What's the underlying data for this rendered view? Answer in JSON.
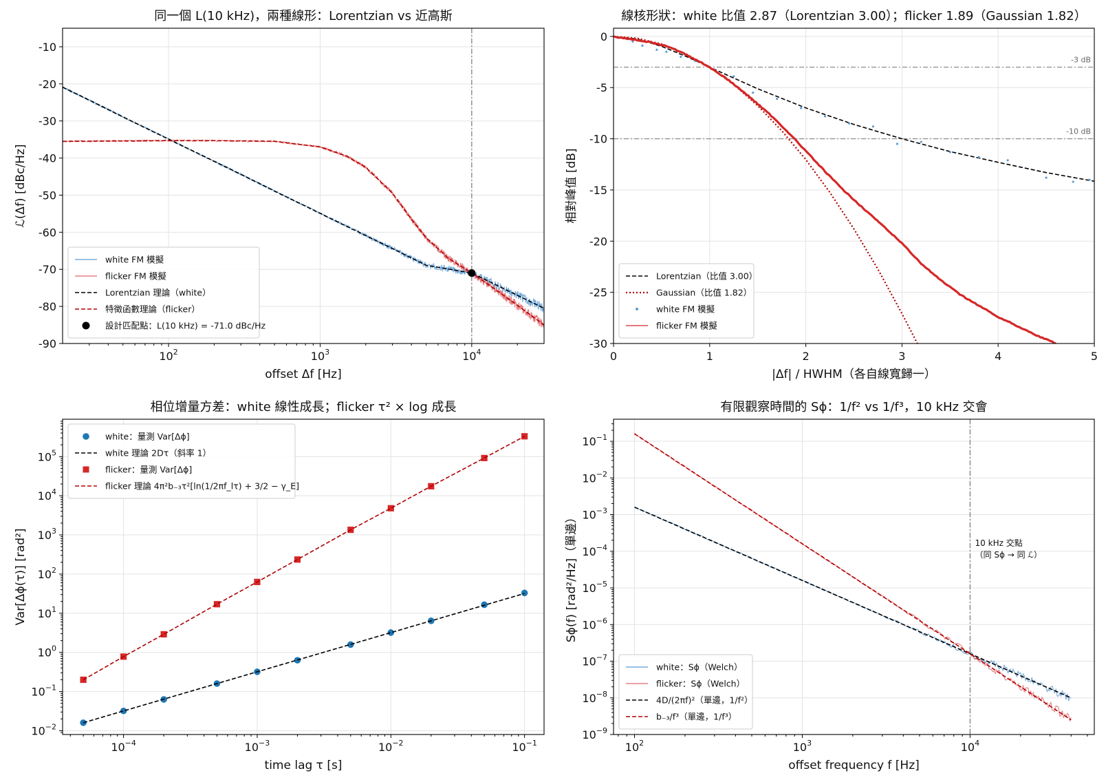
{
  "colors": {
    "white_fm": "#5b9bd5",
    "flicker_fm": "#e0666a",
    "theory_white": "#000000",
    "theory_flicker": "#b00000",
    "measured_white": "#1f77b4",
    "measured_flicker": "#d62728",
    "marker_line": "#777777"
  },
  "chart_data": [
    {
      "type": "line",
      "title": "同一個 L(10 kHz)，兩種線形：Lorentzian vs 近高斯",
      "xlabel": "offset Δf [Hz]",
      "ylabel": "ℒ(Δf) [dBc/Hz]",
      "xscale": "log",
      "xlim": [
        20,
        30000
      ],
      "ylim": [
        -90,
        -5
      ],
      "xticks": [
        {
          "v": 100,
          "m": "10",
          "e": "2"
        },
        {
          "v": 1000,
          "m": "10",
          "e": "3"
        },
        {
          "v": 10000,
          "m": "10",
          "e": "4"
        }
      ],
      "yticks": [
        {
          "v": -10,
          "t": "-10"
        },
        {
          "v": -20,
          "t": "-20"
        },
        {
          "v": -30,
          "t": "-30"
        },
        {
          "v": -40,
          "t": "-40"
        },
        {
          "v": -50,
          "t": "-50"
        },
        {
          "v": -60,
          "t": "-60"
        },
        {
          "v": -70,
          "t": "-70"
        },
        {
          "v": -80,
          "t": "-80"
        },
        {
          "v": -90,
          "t": "-90"
        }
      ],
      "grid": true,
      "legend_position": "lower-left",
      "vline_x": 10000,
      "series": [
        {
          "name": "white FM 模擬",
          "kind": "noisy",
          "color": "white_fm",
          "x": [
            20,
            30,
            50,
            100,
            200,
            300,
            500,
            1000,
            2000,
            3000,
            5000,
            10000,
            20000,
            30000
          ],
          "y": [
            -20.9,
            -24.4,
            -28.9,
            -34.9,
            -40.9,
            -44.4,
            -48.9,
            -54.9,
            -60.9,
            -64.4,
            -68.9,
            -71.0,
            -77.0,
            -80.5
          ]
        },
        {
          "name": "flicker FM 模擬",
          "kind": "noisy",
          "color": "flicker_fm",
          "x": [
            20,
            50,
            100,
            200,
            500,
            1000,
            1500,
            2000,
            3000,
            4000,
            5000,
            7000,
            10000,
            15000,
            20000,
            30000
          ],
          "y": [
            -35.5,
            -35.4,
            -35.3,
            -35.3,
            -35.5,
            -37.0,
            -39.5,
            -42.5,
            -49.5,
            -56.5,
            -61.5,
            -67.0,
            -71.0,
            -76.0,
            -79.7,
            -85.0
          ]
        },
        {
          "name": "Lorentzian 理論（white）",
          "kind": "dashed",
          "color": "theory_white",
          "x": [
            20,
            30,
            50,
            100,
            200,
            300,
            500,
            1000,
            2000,
            3000,
            5000,
            10000,
            20000,
            30000
          ],
          "y": [
            -20.9,
            -24.4,
            -28.9,
            -34.9,
            -40.9,
            -44.4,
            -48.9,
            -54.9,
            -60.9,
            -64.4,
            -68.9,
            -71.0,
            -77.0,
            -80.5
          ]
        },
        {
          "name": "特徵函數理論（flicker）",
          "kind": "dashed",
          "color": "theory_flicker",
          "x": [
            20,
            50,
            100,
            200,
            500,
            1000,
            1500,
            2000,
            3000,
            4000,
            5000,
            7000,
            10000,
            15000,
            20000,
            30000
          ],
          "y": [
            -35.5,
            -35.4,
            -35.3,
            -35.3,
            -35.5,
            -37.0,
            -39.5,
            -42.5,
            -49.5,
            -56.5,
            -61.5,
            -67.0,
            -71.0,
            -76.0,
            -79.7,
            -85.0
          ]
        },
        {
          "name": "設計匹配點：L(10 kHz) = -71.0 dBc/Hz",
          "kind": "point",
          "color": "theory_white",
          "x": [
            10000
          ],
          "y": [
            -71.0
          ]
        }
      ]
    },
    {
      "type": "line",
      "title": "線核形狀：white 比值 2.87（Lorentzian 3.00）；flicker 1.89（Gaussian 1.82）",
      "xlabel": "|Δf| / HWHM（各自線寬歸一）",
      "ylabel": "相對峰值 [dB]",
      "xscale": "linear",
      "xlim": [
        0,
        5
      ],
      "ylim": [
        -30,
        0.8
      ],
      "xticks": [
        {
          "v": 0,
          "t": "0"
        },
        {
          "v": 1,
          "t": "1"
        },
        {
          "v": 2,
          "t": "2"
        },
        {
          "v": 3,
          "t": "3"
        },
        {
          "v": 4,
          "t": "4"
        },
        {
          "v": 5,
          "t": "5"
        }
      ],
      "yticks": [
        {
          "v": 0,
          "t": "0"
        },
        {
          "v": -5,
          "t": "-5"
        },
        {
          "v": -10,
          "t": "-10"
        },
        {
          "v": -15,
          "t": "-15"
        },
        {
          "v": -20,
          "t": "-20"
        },
        {
          "v": -25,
          "t": "-25"
        },
        {
          "v": -30,
          "t": "-30"
        }
      ],
      "grid": true,
      "legend_position": "lower-left",
      "hlines": [
        {
          "y": -3,
          "label": "-3 dB"
        },
        {
          "y": -10,
          "label": "-10 dB"
        }
      ],
      "series": [
        {
          "name": "Lorentzian（比值 3.00）",
          "kind": "dashed",
          "color": "theory_white",
          "x": [
            0,
            0.25,
            0.5,
            0.75,
            1,
            1.5,
            2,
            2.5,
            3,
            3.5,
            4,
            4.5,
            5
          ],
          "y": [
            0,
            -0.26,
            -0.97,
            -1.94,
            -3.01,
            -5.12,
            -6.99,
            -8.6,
            -10.0,
            -11.25,
            -12.3,
            -13.3,
            -14.15
          ]
        },
        {
          "name": "Gaussian（比值 1.82）",
          "kind": "dotted",
          "color": "theory_flicker",
          "x": [
            0,
            0.25,
            0.5,
            0.75,
            1,
            1.25,
            1.5,
            1.75,
            2,
            2.25,
            2.5,
            2.75,
            3,
            3.16
          ],
          "y": [
            0,
            -0.19,
            -0.75,
            -1.69,
            -3.01,
            -4.7,
            -6.77,
            -9.22,
            -12.04,
            -15.24,
            -18.81,
            -22.76,
            -27.09,
            -30.0
          ]
        },
        {
          "name": "white FM 模擬",
          "kind": "scatter",
          "color": "white_fm",
          "x": [
            0.05,
            0.12,
            0.2,
            0.3,
            0.45,
            0.55,
            0.7,
            0.85,
            1.0,
            1.25,
            1.45,
            1.7,
            1.95,
            2.2,
            2.45,
            2.7,
            2.95,
            3.2,
            3.5,
            3.8,
            4.1,
            4.5,
            4.78,
            4.95
          ],
          "y": [
            -0.1,
            -0.2,
            -0.5,
            -0.9,
            -1.3,
            -1.5,
            -2.0,
            -2.4,
            -3.0,
            -3.9,
            -5.5,
            -6.1,
            -7.0,
            -7.8,
            -8.5,
            -8.8,
            -10.5,
            -10.3,
            -11.3,
            -11.8,
            -12.1,
            -13.8,
            -14.2,
            -14.0
          ]
        },
        {
          "name": "flicker FM 模擬",
          "kind": "thick",
          "color": "measured_flicker",
          "x": [
            0,
            0.2,
            0.4,
            0.6,
            0.8,
            1.0,
            1.2,
            1.4,
            1.6,
            1.8,
            2.0,
            2.2,
            2.4,
            2.6,
            2.8,
            3.0,
            3.2,
            3.4,
            3.6,
            3.8,
            4.0,
            4.2,
            4.4,
            4.6
          ],
          "y": [
            0,
            -0.3,
            -0.6,
            -1.1,
            -2.0,
            -3.0,
            -4.3,
            -5.8,
            -7.4,
            -9.2,
            -11.2,
            -13.2,
            -15.1,
            -16.8,
            -18.5,
            -20.2,
            -22.2,
            -23.8,
            -25.2,
            -26.3,
            -27.4,
            -28.3,
            -29.2,
            -30.0
          ]
        }
      ]
    },
    {
      "type": "scatter",
      "title": "相位增量方差：white 線性成長；flicker τ² × log 成長",
      "xlabel": "time lag τ [s]",
      "ylabel": "Var[Δϕ(τ)] [rad²]",
      "xscale": "log",
      "yscale": "log",
      "xlim": [
        3.5e-05,
        0.14
      ],
      "ylim": [
        0.008,
        900000
      ],
      "xticks": [
        {
          "v": 0.0001,
          "m": "10",
          "e": "−4"
        },
        {
          "v": 0.001,
          "m": "10",
          "e": "−3"
        },
        {
          "v": 0.01,
          "m": "10",
          "e": "−2"
        },
        {
          "v": 0.1,
          "m": "10",
          "e": "−1"
        }
      ],
      "yticks": [
        {
          "v": 0.01,
          "m": "10",
          "e": "−2"
        },
        {
          "v": 0.1,
          "m": "10",
          "e": "−1"
        },
        {
          "v": 1,
          "m": "10",
          "e": "0"
        },
        {
          "v": 10,
          "m": "10",
          "e": "1"
        },
        {
          "v": 100,
          "m": "10",
          "e": "2"
        },
        {
          "v": 1000,
          "m": "10",
          "e": "3"
        },
        {
          "v": 10000,
          "m": "10",
          "e": "4"
        },
        {
          "v": 100000,
          "m": "10",
          "e": "5"
        }
      ],
      "grid": true,
      "legend_position": "upper-left",
      "series": [
        {
          "name": "white：量測 Var[Δϕ]",
          "kind": "circle",
          "color": "measured_white",
          "x": [
            5e-05,
            0.0001,
            0.0002,
            0.0005,
            0.001,
            0.002,
            0.005,
            0.01,
            0.02,
            0.05,
            0.1
          ],
          "y": [
            0.016,
            0.032,
            0.063,
            0.16,
            0.32,
            0.63,
            1.58,
            3.2,
            6.4,
            16.5,
            33
          ]
        },
        {
          "name": "white 理論 2Dτ（斜率 1）",
          "kind": "dashed",
          "color": "theory_white",
          "x": [
            5e-05,
            0.1
          ],
          "y": [
            0.016,
            32
          ]
        },
        {
          "name": "flicker：量測 Var[Δϕ]",
          "kind": "square",
          "color": "measured_flicker",
          "x": [
            5e-05,
            0.0001,
            0.0002,
            0.0005,
            0.001,
            0.002,
            0.005,
            0.01,
            0.02,
            0.05,
            0.1
          ],
          "y": [
            0.2,
            0.78,
            2.9,
            17,
            63,
            235,
            1350,
            4800,
            17500,
            92000,
            330000
          ]
        },
        {
          "name": "flicker 理論 4π²b₋₃τ²[ln(1/2πf_lτ) + 3/2 − γ_E]",
          "kind": "dashed",
          "color": "theory_flicker",
          "x": [
            5e-05,
            0.0001,
            0.0002,
            0.0005,
            0.001,
            0.002,
            0.005,
            0.01,
            0.02,
            0.05,
            0.1
          ],
          "y": [
            0.2,
            0.78,
            2.9,
            17,
            63,
            235,
            1350,
            4800,
            17500,
            92000,
            330000
          ]
        }
      ]
    },
    {
      "type": "line",
      "title": "有限觀察時間的 Sϕ：1/f² vs 1/f³，10 kHz 交會",
      "xlabel": "offset frequency f [Hz]",
      "ylabel": "Sϕ(f) [rad²/Hz]（單邊）",
      "xscale": "log",
      "yscale": "log",
      "xlim": [
        75,
        55000
      ],
      "ylim": [
        1e-09,
        0.4
      ],
      "xticks": [
        {
          "v": 100,
          "m": "10",
          "e": "2"
        },
        {
          "v": 1000,
          "m": "10",
          "e": "3"
        },
        {
          "v": 10000,
          "m": "10",
          "e": "4"
        }
      ],
      "yticks": [
        {
          "v": 1e-09,
          "m": "10",
          "e": "−9"
        },
        {
          "v": 1e-08,
          "m": "10",
          "e": "−8"
        },
        {
          "v": 1e-07,
          "m": "10",
          "e": "−7"
        },
        {
          "v": 1e-06,
          "m": "10",
          "e": "−6"
        },
        {
          "v": 1e-05,
          "m": "10",
          "e": "−5"
        },
        {
          "v": 0.0001,
          "m": "10",
          "e": "−4"
        },
        {
          "v": 0.001,
          "m": "10",
          "e": "−3"
        },
        {
          "v": 0.01,
          "m": "10",
          "e": "−2"
        },
        {
          "v": 0.1,
          "m": "10",
          "e": "−1"
        }
      ],
      "grid": true,
      "legend_position": "lower-left",
      "vline_x": 10000,
      "annotation": {
        "x": 10700,
        "y": 0.0001,
        "lines": [
          "10 kHz 交點",
          "（同 Sϕ → 同 ℒ）"
        ]
      },
      "series": [
        {
          "name": "white：Sϕ（Welch）",
          "kind": "noisy",
          "color": "white_fm",
          "x": [
            100,
            1000,
            10000,
            40000
          ],
          "y": [
            0.0016,
            1.6e-05,
            1.6e-07,
            1e-08
          ]
        },
        {
          "name": "flicker：Sϕ（Welch）",
          "kind": "noisy",
          "color": "flicker_fm",
          "x": [
            100,
            1000,
            10000,
            40000
          ],
          "y": [
            0.16,
            0.00016,
            1.6e-07,
            2.5e-09
          ]
        },
        {
          "name": "4D/(2πf)²（單邊，1/f²）",
          "kind": "dashed",
          "color": "theory_white",
          "x": [
            100,
            40000
          ],
          "y": [
            0.0016,
            1e-08
          ]
        },
        {
          "name": "b₋₃/f³（單邊，1/f³）",
          "kind": "dashed",
          "color": "theory_flicker",
          "x": [
            100,
            40000
          ],
          "y": [
            0.16,
            2.5e-09
          ]
        }
      ]
    }
  ]
}
